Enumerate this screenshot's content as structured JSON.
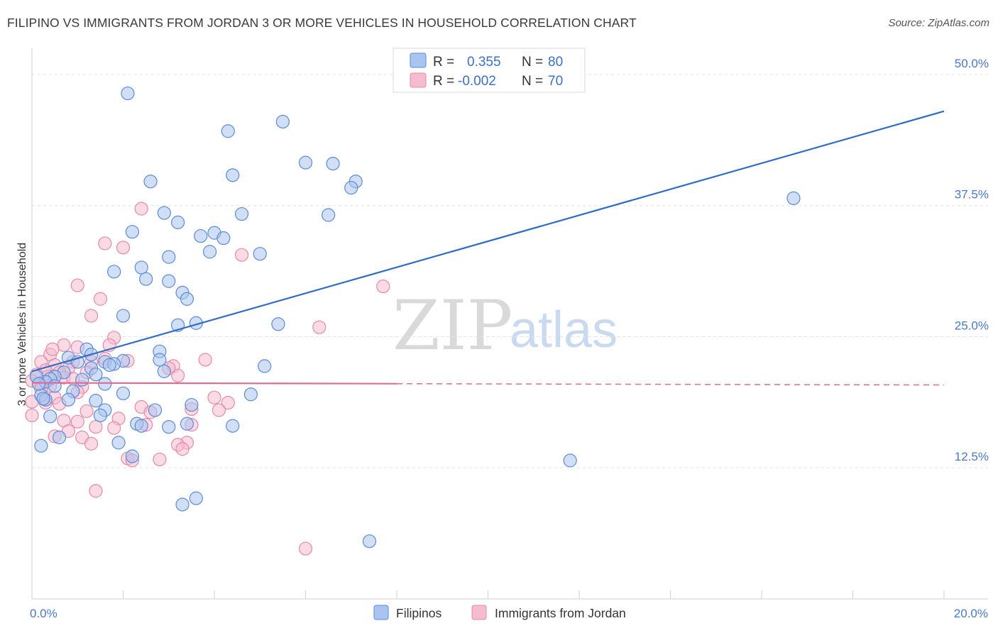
{
  "title": "FILIPINO VS IMMIGRANTS FROM JORDAN 3 OR MORE VEHICLES IN HOUSEHOLD CORRELATION CHART",
  "source": "Source: ZipAtlas.com",
  "watermark": {
    "zip": "ZIP",
    "atlas": "atlas"
  },
  "colors": {
    "blue_fill": "#a9c4ee",
    "blue_stroke": "#5b8bd8",
    "blue_line": "#2f6cc8",
    "pink_fill": "#f5bcd0",
    "pink_stroke": "#e58aa8",
    "pink_line": "#e06b95",
    "grid": "#e3e3e3",
    "tick_text": "#4a78c8"
  },
  "legend": {
    "r_label": "R =",
    "n_label": "N =",
    "blue": {
      "r": "0.355",
      "n": "80"
    },
    "pink": {
      "r": "-0.002",
      "n": "70"
    }
  },
  "chart_data": {
    "type": "scatter",
    "title": "FILIPINO VS IMMIGRANTS FROM JORDAN 3 OR MORE VEHICLES IN HOUSEHOLD CORRELATION CHART",
    "xlabel": "",
    "ylabel": "3 or more Vehicles in Household",
    "xlim": [
      0,
      20
    ],
    "ylim": [
      0,
      52.5
    ],
    "x_tick_labels": [
      "0.0%",
      "20.0%"
    ],
    "y_ticks": [
      12.5,
      25.0,
      37.5,
      50.0
    ],
    "y_tick_labels": [
      "12.5%",
      "25.0%",
      "37.5%",
      "50.0%"
    ],
    "legend_position": "top-center",
    "series": [
      {
        "name": "Filipinos",
        "r": 0.355,
        "n": 80,
        "trend": {
          "x": [
            0,
            20
          ],
          "y": [
            21.7,
            46.5
          ],
          "dashed_from": null
        },
        "points": [
          [
            2.1,
            48.2
          ],
          [
            5.5,
            45.5
          ],
          [
            4.3,
            44.6
          ],
          [
            6.0,
            41.6
          ],
          [
            6.6,
            41.5
          ],
          [
            4.4,
            40.4
          ],
          [
            7.1,
            39.8
          ],
          [
            7.0,
            39.2
          ],
          [
            2.6,
            39.8
          ],
          [
            16.7,
            38.2
          ],
          [
            4.6,
            36.7
          ],
          [
            6.5,
            36.6
          ],
          [
            2.9,
            36.8
          ],
          [
            3.2,
            35.9
          ],
          [
            2.2,
            35.0
          ],
          [
            4.0,
            34.9
          ],
          [
            3.7,
            34.6
          ],
          [
            4.2,
            34.4
          ],
          [
            3.9,
            33.1
          ],
          [
            5.0,
            32.9
          ],
          [
            3.0,
            32.6
          ],
          [
            2.4,
            31.6
          ],
          [
            1.8,
            31.2
          ],
          [
            2.5,
            30.5
          ],
          [
            3.0,
            30.3
          ],
          [
            3.3,
            29.2
          ],
          [
            3.4,
            28.6
          ],
          [
            2.0,
            27.0
          ],
          [
            5.4,
            26.2
          ],
          [
            3.6,
            26.3
          ],
          [
            3.2,
            26.1
          ],
          [
            2.8,
            23.6
          ],
          [
            1.2,
            23.8
          ],
          [
            1.3,
            23.3
          ],
          [
            0.8,
            23.0
          ],
          [
            1.0,
            22.6
          ],
          [
            1.6,
            22.6
          ],
          [
            2.0,
            22.7
          ],
          [
            1.8,
            22.4
          ],
          [
            2.8,
            22.8
          ],
          [
            5.1,
            22.2
          ],
          [
            1.3,
            22.0
          ],
          [
            0.7,
            21.6
          ],
          [
            1.4,
            21.4
          ],
          [
            0.5,
            21.2
          ],
          [
            0.4,
            21.0
          ],
          [
            1.1,
            20.9
          ],
          [
            0.3,
            20.7
          ],
          [
            1.6,
            20.5
          ],
          [
            0.5,
            20.3
          ],
          [
            2.9,
            21.7
          ],
          [
            0.9,
            19.8
          ],
          [
            0.2,
            19.4
          ],
          [
            0.3,
            19.0
          ],
          [
            0.8,
            19.0
          ],
          [
            1.4,
            18.9
          ],
          [
            2.0,
            19.6
          ],
          [
            4.8,
            19.5
          ],
          [
            3.5,
            18.5
          ],
          [
            1.6,
            18.0
          ],
          [
            2.7,
            18.0
          ],
          [
            1.5,
            17.5
          ],
          [
            0.4,
            17.4
          ],
          [
            2.3,
            16.7
          ],
          [
            2.4,
            16.5
          ],
          [
            3.0,
            16.4
          ],
          [
            3.4,
            16.7
          ],
          [
            4.4,
            16.5
          ],
          [
            0.6,
            15.4
          ],
          [
            1.9,
            14.9
          ],
          [
            0.2,
            14.6
          ],
          [
            2.2,
            13.6
          ],
          [
            11.8,
            13.2
          ],
          [
            3.6,
            9.6
          ],
          [
            3.3,
            9.0
          ],
          [
            7.4,
            5.5
          ],
          [
            0.1,
            21.2
          ],
          [
            0.15,
            20.5
          ],
          [
            0.25,
            19.1
          ],
          [
            1.7,
            22.3
          ]
        ]
      },
      {
        "name": "Immigrants from Jordan",
        "r": -0.002,
        "n": 70,
        "trend": {
          "x": [
            0,
            20
          ],
          "y": [
            20.6,
            20.4
          ],
          "dashed_from": 8.0
        },
        "points": [
          [
            2.4,
            37.2
          ],
          [
            1.6,
            33.9
          ],
          [
            2.0,
            33.5
          ],
          [
            4.6,
            32.8
          ],
          [
            1.0,
            29.9
          ],
          [
            7.7,
            29.8
          ],
          [
            1.5,
            28.6
          ],
          [
            1.3,
            27.0
          ],
          [
            6.3,
            25.9
          ],
          [
            1.8,
            24.9
          ],
          [
            1.7,
            24.2
          ],
          [
            0.7,
            24.2
          ],
          [
            1.0,
            24.0
          ],
          [
            0.4,
            23.3
          ],
          [
            3.8,
            22.8
          ],
          [
            2.1,
            22.7
          ],
          [
            0.9,
            22.6
          ],
          [
            0.2,
            22.6
          ],
          [
            1.3,
            22.6
          ],
          [
            0.5,
            22.3
          ],
          [
            3.1,
            22.2
          ],
          [
            0.8,
            22.0
          ],
          [
            0.3,
            21.8
          ],
          [
            0.6,
            21.6
          ],
          [
            1.2,
            21.6
          ],
          [
            0.1,
            21.4
          ],
          [
            3.2,
            21.3
          ],
          [
            0.7,
            21.1
          ],
          [
            0.9,
            21.0
          ],
          [
            0.0,
            20.8
          ],
          [
            0.2,
            20.6
          ],
          [
            0.4,
            20.3
          ],
          [
            1.1,
            20.2
          ],
          [
            1.0,
            19.7
          ],
          [
            0.5,
            19.2
          ],
          [
            4.0,
            19.2
          ],
          [
            0.0,
            18.8
          ],
          [
            0.3,
            18.7
          ],
          [
            0.6,
            18.6
          ],
          [
            4.3,
            18.7
          ],
          [
            2.4,
            18.3
          ],
          [
            3.5,
            18.1
          ],
          [
            1.2,
            17.9
          ],
          [
            2.6,
            17.8
          ],
          [
            0.0,
            17.5
          ],
          [
            0.7,
            17.0
          ],
          [
            1.0,
            16.9
          ],
          [
            1.9,
            17.2
          ],
          [
            2.5,
            16.6
          ],
          [
            1.4,
            16.4
          ],
          [
            1.8,
            16.3
          ],
          [
            3.5,
            16.6
          ],
          [
            0.8,
            16.0
          ],
          [
            0.5,
            15.5
          ],
          [
            1.1,
            15.4
          ],
          [
            3.4,
            14.9
          ],
          [
            3.2,
            14.7
          ],
          [
            3.3,
            14.3
          ],
          [
            1.3,
            14.8
          ],
          [
            2.1,
            13.4
          ],
          [
            2.2,
            13.2
          ],
          [
            2.8,
            13.3
          ],
          [
            1.4,
            10.3
          ],
          [
            6.0,
            4.8
          ],
          [
            0.2,
            20.0
          ],
          [
            0.35,
            21.2
          ],
          [
            3.0,
            22.0
          ],
          [
            1.6,
            22.9
          ],
          [
            0.45,
            23.8
          ],
          [
            4.1,
            18.0
          ]
        ]
      }
    ]
  },
  "bottom_legend": [
    "Filipinos",
    "Immigrants from Jordan"
  ]
}
